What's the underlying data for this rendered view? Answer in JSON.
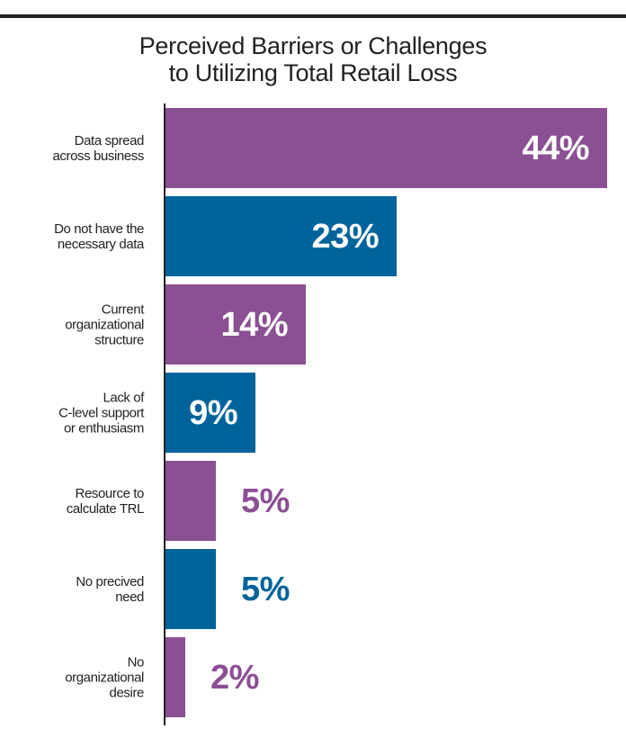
{
  "chart_data": {
    "type": "bar",
    "orientation": "horizontal",
    "title": "Perceived Barriers or Challenges to Utilizing Total Retail Loss",
    "title_lines": [
      "Perceived Barriers or Challenges",
      "to Utilizing Total Retail Loss"
    ],
    "xlabel": "",
    "ylabel": "",
    "xlim": [
      0,
      44
    ],
    "grid": false,
    "legend": null,
    "categories": [
      "Data spread across business",
      "Do not have the necessary data",
      "Current organizational structure",
      "Lack of C-level support or enthusiasm",
      "Resource to calculate TRL",
      "No precived need",
      "No organizational desire"
    ],
    "values": [
      44,
      23,
      14,
      9,
      5,
      5,
      2
    ],
    "unit": "%",
    "value_labels": [
      "44%",
      "23%",
      "14%",
      "9%",
      "5%",
      "5%",
      "2%"
    ],
    "colors": [
      "#8B4F93",
      "#00649A",
      "#8B4F93",
      "#00649A",
      "#8B4F93",
      "#00649A",
      "#8B4F93"
    ]
  },
  "bars": [
    {
      "label_lines": [
        "Data spread",
        "across business"
      ],
      "value_label": "44%",
      "color": "#8B4F93"
    },
    {
      "label_lines": [
        "Do not have the",
        "necessary data"
      ],
      "value_label": "23%",
      "color": "#00649A"
    },
    {
      "label_lines": [
        "Current",
        "organizational",
        "structure"
      ],
      "value_label": "14%",
      "color": "#8B4F93"
    },
    {
      "label_lines": [
        "Lack of",
        "C-level support",
        "or enthusiasm"
      ],
      "value_label": "9%",
      "color": "#00649A"
    },
    {
      "label_lines": [
        "Resource to",
        "calculate TRL"
      ],
      "value_label": "5%",
      "color": "#8B4F93"
    },
    {
      "label_lines": [
        "No precived",
        "need"
      ],
      "value_label": "5%",
      "color": "#00649A"
    },
    {
      "label_lines": [
        "No",
        "organizational",
        "desire"
      ],
      "value_label": "2%",
      "color": "#8B4F93"
    }
  ]
}
